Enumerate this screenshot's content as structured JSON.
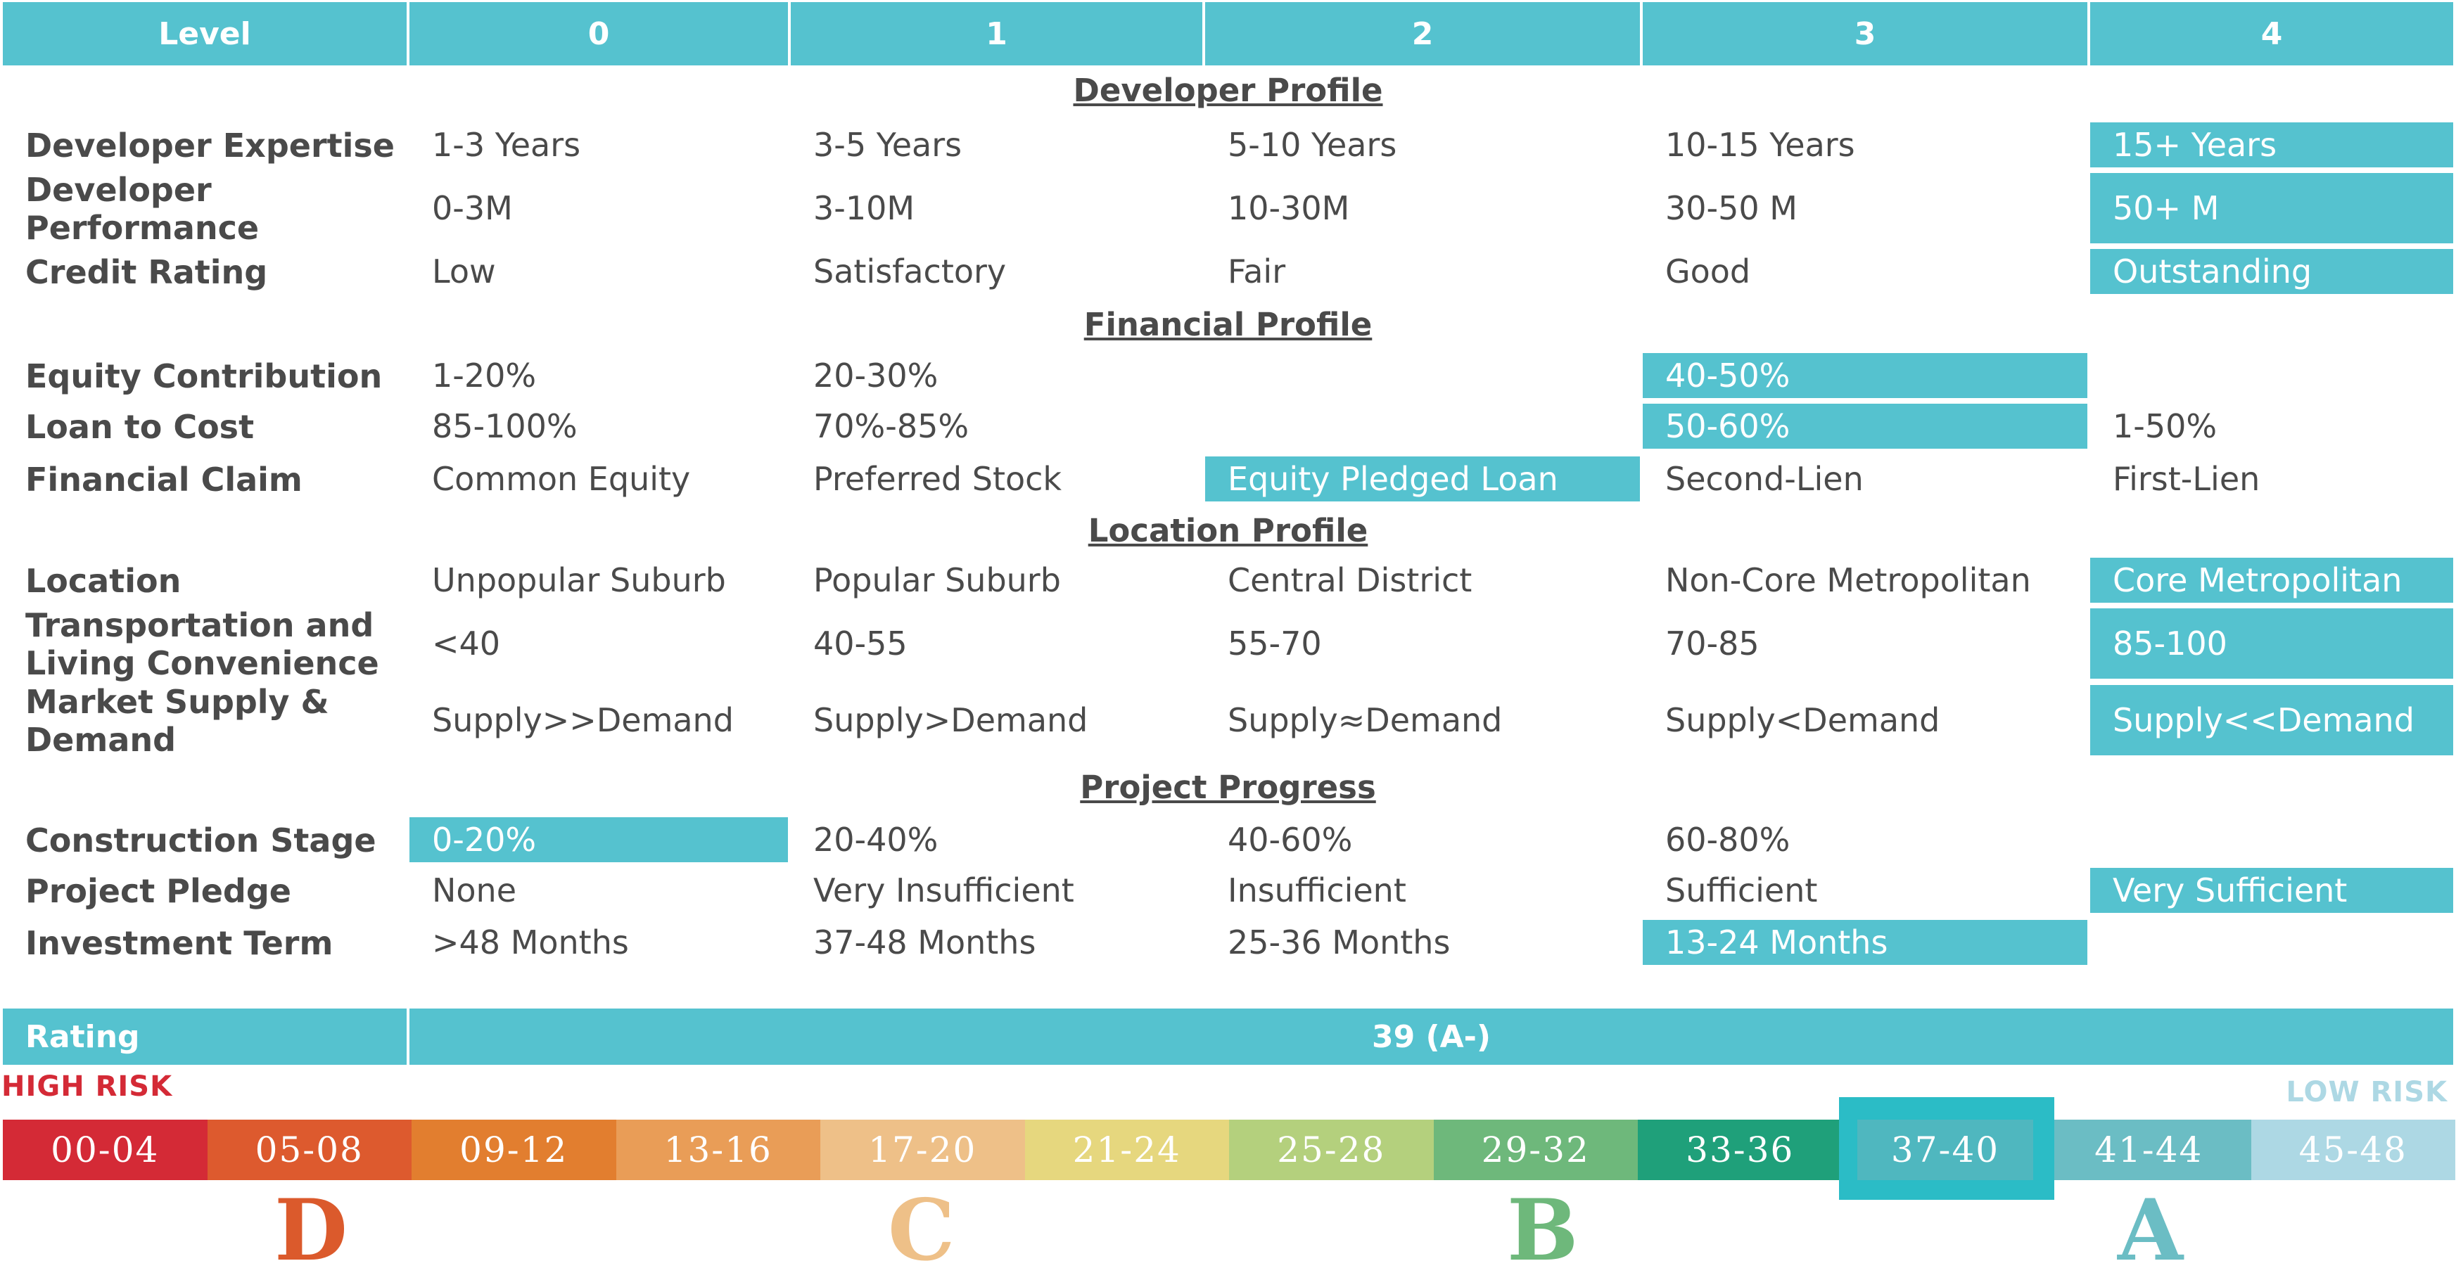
{
  "header": {
    "level": "Level",
    "levels": [
      "0",
      "1",
      "2",
      "3",
      "4"
    ]
  },
  "sections": {
    "developer": "Developer Profile",
    "financial": "Financial Profile",
    "location": "Location Profile",
    "progress": "Project Progress"
  },
  "rows": [
    {
      "label": "Developer Expertise",
      "cells": [
        "1-3 Years",
        "3-5 Years",
        "5-10 Years",
        "10-15 Years",
        "15+  Years"
      ],
      "selected": 4
    },
    {
      "label": "Developer Performance",
      "cells": [
        "0-3M",
        "3-10M",
        "10-30M",
        "30-50 M",
        "50+ M"
      ],
      "selected": 4
    },
    {
      "label": "Credit Rating",
      "cells": [
        "Low",
        "Satisfactory",
        "Fair",
        "Good",
        "Outstanding"
      ],
      "selected": 4
    },
    {
      "label": "Equity Contribution",
      "cells": [
        "1-20%",
        "20-30%",
        "",
        "40-50%",
        ""
      ],
      "selected": 3
    },
    {
      "label": "Loan to Cost",
      "cells": [
        "85-100%",
        "70%-85%",
        "",
        "50-60%",
        "1-50%"
      ],
      "selected": 3
    },
    {
      "label": "Financial Claim",
      "cells": [
        "Common Equity",
        "Preferred Stock",
        "Equity Pledged Loan",
        "Second-Lien",
        "First-Lien"
      ],
      "selected": 2
    },
    {
      "label": "Location",
      "cells": [
        "Unpopular Suburb",
        "Popular Suburb",
        "Central District",
        "Non-Core Metropolitan",
        "Core Metropolitan"
      ],
      "selected": 4
    },
    {
      "label": "Transportation and Living Convenience",
      "cells": [
        "<40",
        "40-55",
        "55-70",
        "70-85",
        "85-100"
      ],
      "selected": 4
    },
    {
      "label": "Market Supply & Demand",
      "cells": [
        "Supply>>Demand",
        "Supply>Demand",
        "Supply≈Demand",
        "Supply<Demand",
        "Supply<<Demand"
      ],
      "selected": 4
    },
    {
      "label": "Construction Stage",
      "cells": [
        "0-20%",
        "20-40%",
        "40-60%",
        "60-80%",
        ""
      ],
      "selected": 0
    },
    {
      "label": "Project Pledge",
      "cells": [
        "None",
        "Very Insufficient",
        "Insufficient",
        "Sufficient",
        "Very Sufficient"
      ],
      "selected": 4
    },
    {
      "label": "Investment Term",
      "cells": [
        ">48 Months",
        "37-48 Months",
        "25-36 Months",
        "13-24 Months",
        ""
      ],
      "selected": 3
    }
  ],
  "rating": {
    "label": "Rating",
    "value": "39 (A-)"
  },
  "risk": {
    "high": "HIGH RISK",
    "low": "LOW RISK"
  },
  "scale": {
    "segments": [
      "00-04",
      "05-08",
      "09-12",
      "13-16",
      "17-20",
      "21-24",
      "25-28",
      "29-32",
      "33-36",
      "37-40",
      "41-44",
      "45-48"
    ],
    "colors": [
      "#d42a36",
      "#dd5a2e",
      "#e27e2f",
      "#e99d57",
      "#eec088",
      "#e6d77e",
      "#b4d07d",
      "#6eb87b",
      "#1fa07a",
      "#2bbcc6",
      "#6bbdc4",
      "#add8e4"
    ],
    "selected_index": 9
  },
  "grades": [
    {
      "letter": "D",
      "color": "#db5a2c"
    },
    {
      "letter": "C",
      "color": "#eec088"
    },
    {
      "letter": "B",
      "color": "#6eb87b"
    },
    {
      "letter": "A",
      "color": "#6bbdc4"
    }
  ],
  "colors": {
    "accent": "#55c2cf",
    "high_risk": "#d42a36",
    "low_risk": "#add8e4",
    "text": "#4a4a4a"
  }
}
